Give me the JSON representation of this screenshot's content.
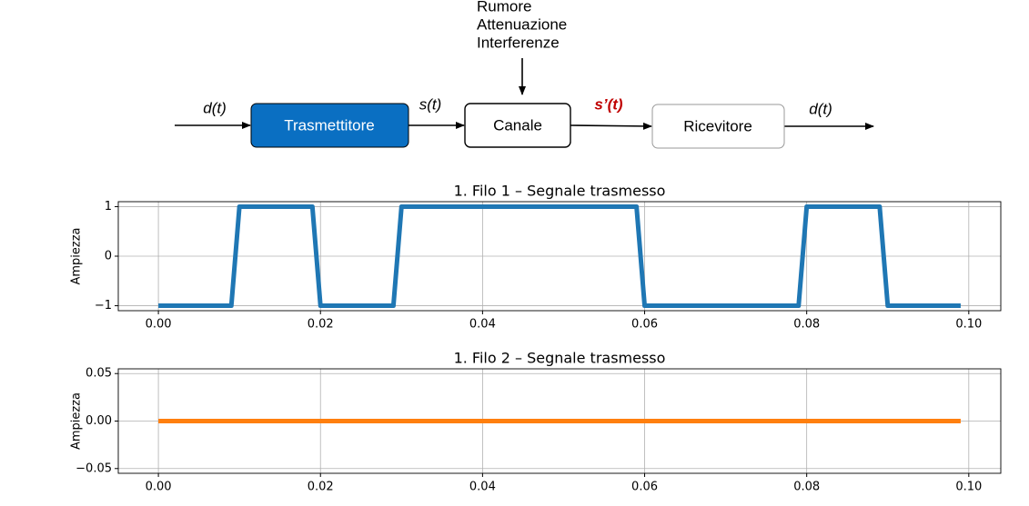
{
  "diagram": {
    "noise_labels": [
      "Rumore",
      "Attenuazione",
      "Interferenze"
    ],
    "blocks": [
      "Trasmettitore",
      "Canale",
      "Ricevitore"
    ],
    "signals": [
      "d(t)",
      "s(t)",
      "s’(t)",
      "d(t)"
    ]
  },
  "chart_data": [
    {
      "type": "line",
      "title": "1. Filo 1 – Segnale trasmesso",
      "y_label": "Ampiezza",
      "x": [
        0,
        0.001,
        0.002,
        0.003,
        0.004,
        0.005,
        0.006,
        0.007,
        0.008,
        0.009,
        0.01,
        0.011,
        0.012,
        0.013,
        0.014,
        0.015,
        0.016,
        0.017,
        0.018,
        0.019,
        0.02,
        0.021,
        0.022,
        0.023,
        0.024,
        0.025,
        0.026,
        0.027,
        0.028,
        0.029,
        0.03,
        0.031,
        0.032,
        0.033,
        0.034,
        0.035,
        0.036,
        0.037,
        0.038,
        0.039,
        0.04,
        0.041,
        0.042,
        0.043,
        0.044,
        0.045,
        0.046,
        0.047,
        0.048,
        0.049,
        0.05,
        0.051,
        0.052,
        0.053,
        0.054,
        0.055,
        0.056,
        0.057,
        0.058,
        0.059,
        0.06,
        0.061,
        0.062,
        0.063,
        0.064,
        0.065,
        0.066,
        0.067,
        0.068,
        0.069,
        0.07,
        0.071,
        0.072,
        0.073,
        0.074,
        0.075,
        0.076,
        0.077,
        0.078,
        0.079,
        0.08,
        0.081,
        0.082,
        0.083,
        0.084,
        0.085,
        0.086,
        0.087,
        0.088,
        0.089,
        0.09,
        0.091,
        0.092,
        0.093,
        0.094,
        0.095,
        0.096,
        0.097,
        0.098,
        0.099
      ],
      "series": [
        {
          "color": "#1f77b4",
          "values": [
            -1,
            -1,
            -1,
            -1,
            -1,
            -1,
            -1,
            -1,
            -1,
            -1,
            1,
            1,
            1,
            1,
            1,
            1,
            1,
            1,
            1,
            1,
            -1,
            -1,
            -1,
            -1,
            -1,
            -1,
            -1,
            -1,
            -1,
            -1,
            1,
            1,
            1,
            1,
            1,
            1,
            1,
            1,
            1,
            1,
            1,
            1,
            1,
            1,
            1,
            1,
            1,
            1,
            1,
            1,
            1,
            1,
            1,
            1,
            1,
            1,
            1,
            1,
            1,
            1,
            -1,
            -1,
            -1,
            -1,
            -1,
            -1,
            -1,
            -1,
            -1,
            -1,
            -1,
            -1,
            -1,
            -1,
            -1,
            -1,
            -1,
            -1,
            -1,
            -1,
            1,
            1,
            1,
            1,
            1,
            1,
            1,
            1,
            1,
            1,
            -1,
            -1,
            -1,
            -1,
            -1,
            -1,
            -1,
            -1,
            -1,
            -1
          ]
        }
      ],
      "xlim": [
        -0.00495,
        0.10395
      ],
      "xticks": [
        {
          "value": 0,
          "label": "0.00"
        },
        {
          "value": 0.02,
          "label": "0.02"
        },
        {
          "value": 0.04,
          "label": "0.04"
        },
        {
          "value": 0.06,
          "label": "0.06"
        },
        {
          "value": 0.08,
          "label": "0.08"
        },
        {
          "value": 0.1,
          "label": "0.10"
        }
      ],
      "ylim": [
        -1.1,
        1.1
      ],
      "yticks": [
        {
          "value": -1,
          "label": "−1"
        },
        0,
        1
      ],
      "grid": true
    },
    {
      "type": "line",
      "title": "1. Filo 2 – Segnale trasmesso",
      "y_label": "Ampiezza",
      "x": [
        0,
        0.099
      ],
      "series": [
        {
          "color": "#ff7f0e",
          "values": [
            0,
            0
          ]
        }
      ],
      "xlim": [
        -0.00495,
        0.10395
      ],
      "xticks": [
        {
          "value": 0,
          "label": "0.00"
        },
        {
          "value": 0.02,
          "label": "0.02"
        },
        {
          "value": 0.04,
          "label": "0.04"
        },
        {
          "value": 0.06,
          "label": "0.06"
        },
        {
          "value": 0.08,
          "label": "0.08"
        },
        {
          "value": 0.1,
          "label": "0.10"
        }
      ],
      "ylim": [
        -0.055,
        0.055
      ],
      "yticks": [
        {
          "value": -0.05,
          "label": "−0.05"
        },
        {
          "value": 0,
          "label": "0.00"
        },
        {
          "value": 0.05,
          "label": "0.05"
        }
      ],
      "grid": true
    }
  ]
}
